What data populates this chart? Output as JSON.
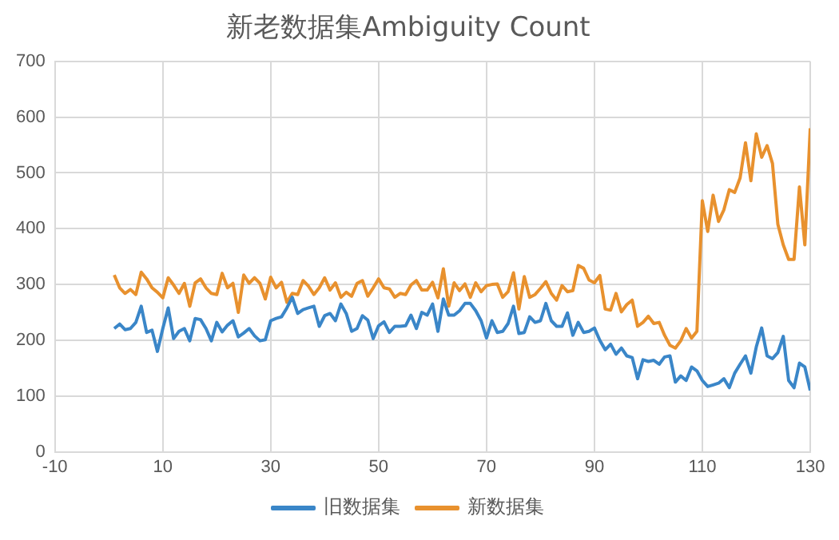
{
  "chart_data": {
    "type": "line",
    "title": "新老数据集Ambiguity Count",
    "x": [
      1,
      2,
      3,
      4,
      5,
      6,
      7,
      8,
      9,
      10,
      11,
      12,
      13,
      14,
      15,
      16,
      17,
      18,
      19,
      20,
      21,
      22,
      23,
      24,
      25,
      26,
      27,
      28,
      29,
      30,
      31,
      32,
      33,
      34,
      35,
      36,
      37,
      38,
      39,
      40,
      41,
      42,
      43,
      44,
      45,
      46,
      47,
      48,
      49,
      50,
      51,
      52,
      53,
      54,
      55,
      56,
      57,
      58,
      59,
      60,
      61,
      62,
      63,
      64,
      65,
      66,
      67,
      68,
      69,
      70,
      71,
      72,
      73,
      74,
      75,
      76,
      77,
      78,
      79,
      80,
      81,
      82,
      83,
      84,
      85,
      86,
      87,
      88,
      89,
      90,
      91,
      92,
      93,
      94,
      95,
      96,
      97,
      98,
      99,
      100,
      101,
      102,
      103,
      104,
      105,
      106,
      107,
      108,
      109,
      110,
      111,
      112,
      113,
      114,
      115,
      116,
      117,
      118,
      119,
      120,
      121,
      122,
      123,
      124,
      125,
      126,
      127,
      128,
      129,
      130
    ],
    "series": [
      {
        "name": "旧数据集",
        "color": "#3a86c8",
        "values": [
          221,
          229,
          219,
          221,
          232,
          261,
          214,
          218,
          180,
          221,
          258,
          203,
          216,
          221,
          199,
          239,
          237,
          221,
          199,
          232,
          215,
          227,
          235,
          206,
          213,
          221,
          208,
          199,
          201,
          235,
          239,
          242,
          258,
          277,
          248,
          255,
          258,
          261,
          225,
          244,
          248,
          235,
          265,
          248,
          216,
          221,
          244,
          236,
          203,
          226,
          233,
          214,
          225,
          225,
          226,
          245,
          221,
          250,
          245,
          265,
          216,
          274,
          245,
          245,
          253,
          266,
          266,
          253,
          235,
          204,
          235,
          214,
          216,
          230,
          261,
          212,
          214,
          242,
          232,
          235,
          266,
          235,
          225,
          225,
          249,
          209,
          232,
          214,
          216,
          222,
          200,
          183,
          193,
          175,
          186,
          172,
          169,
          131,
          165,
          162,
          164,
          157,
          170,
          172,
          125,
          136,
          128,
          152,
          145,
          128,
          117,
          120,
          123,
          131,
          115,
          141,
          157,
          172,
          141,
          188,
          222,
          172,
          167,
          178,
          207,
          128,
          115,
          159,
          152,
          110
        ]
      },
      {
        "name": "新数据集",
        "color": "#e8912e",
        "values": [
          317,
          294,
          284,
          291,
          282,
          322,
          310,
          294,
          286,
          276,
          312,
          299,
          284,
          302,
          261,
          303,
          310,
          294,
          284,
          282,
          320,
          294,
          302,
          250,
          317,
          302,
          312,
          302,
          274,
          313,
          294,
          304,
          268,
          284,
          282,
          307,
          297,
          282,
          294,
          312,
          290,
          303,
          277,
          286,
          279,
          302,
          307,
          279,
          294,
          310,
          294,
          292,
          277,
          284,
          282,
          299,
          307,
          290,
          290,
          304,
          276,
          328,
          261,
          303,
          289,
          301,
          277,
          303,
          287,
          298,
          300,
          301,
          277,
          287,
          321,
          256,
          314,
          277,
          282,
          293,
          305,
          284,
          272,
          298,
          287,
          289,
          334,
          329,
          308,
          303,
          316,
          256,
          254,
          284,
          251,
          264,
          272,
          225,
          232,
          243,
          230,
          232,
          209,
          191,
          186,
          199,
          221,
          204,
          216,
          450,
          395,
          460,
          413,
          434,
          470,
          465,
          491,
          554,
          486,
          570,
          528,
          549,
          517,
          408,
          371,
          345,
          345,
          475,
          371,
          580
        ]
      }
    ],
    "xlim": [
      -10,
      130
    ],
    "xticks": [
      -10,
      10,
      30,
      50,
      70,
      90,
      110,
      130
    ],
    "ylim": [
      0,
      700
    ],
    "yticks": [
      0,
      100,
      200,
      300,
      400,
      500,
      600,
      700
    ],
    "grid": true,
    "legend": "bottom",
    "marker": "none",
    "line_style": "solid"
  }
}
